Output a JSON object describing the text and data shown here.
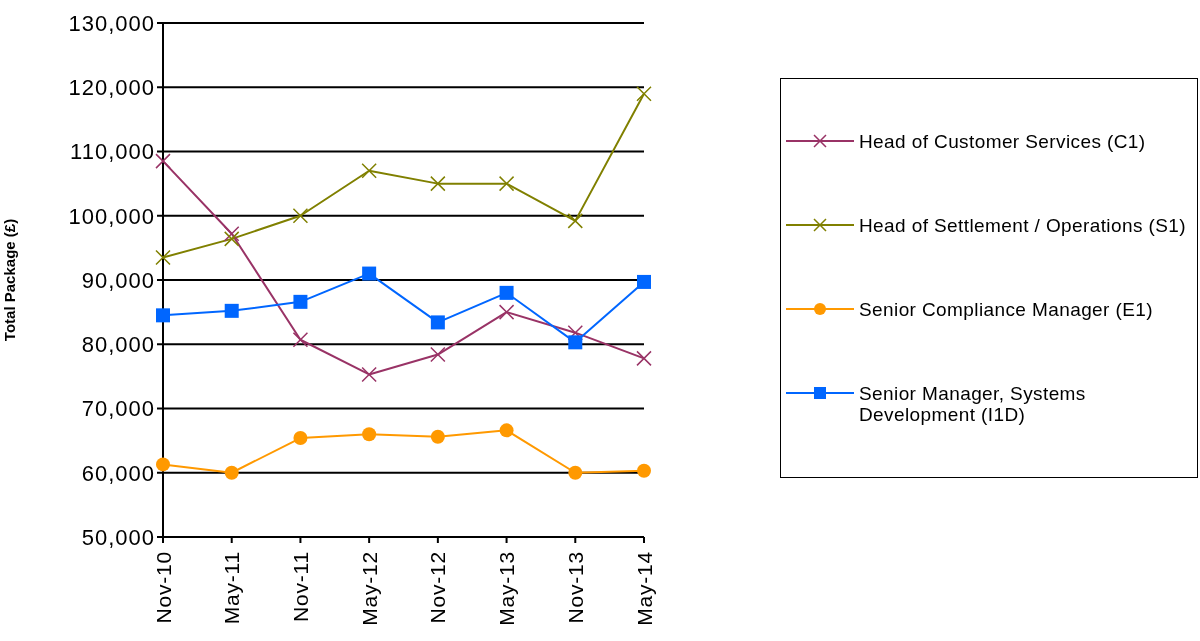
{
  "chart_data": {
    "type": "line",
    "ylabel": "Total Package (£)",
    "categories": [
      "Nov-10",
      "May-11",
      "Nov-11",
      "May-12",
      "Nov-12",
      "May-13",
      "Nov-13",
      "May-14"
    ],
    "series": [
      {
        "name": "Head of Customer Services (C1)",
        "color": "#993366",
        "marker": "cross",
        "values": [
          108500,
          97200,
          80700,
          75300,
          78400,
          85000,
          81800,
          77800
        ]
      },
      {
        "name": "Head of Settlement / Operations (S1)",
        "color": "#808000",
        "marker": "cross",
        "values": [
          93500,
          96400,
          100000,
          107000,
          105000,
          105000,
          99200,
          119000
        ]
      },
      {
        "name": "Senior Compliance Manager (E1)",
        "color": "#ff9900",
        "marker": "circle",
        "values": [
          61300,
          60000,
          65400,
          66000,
          65600,
          66600,
          60000,
          60300
        ]
      },
      {
        "name": "Senior Manager, Systems Development (I1D)",
        "color": "#0066ff",
        "marker": "square",
        "values": [
          84500,
          85200,
          86600,
          91000,
          83400,
          88000,
          80300,
          89700
        ]
      }
    ],
    "ylim": [
      50000,
      130000
    ],
    "yticks": [
      {
        "value": 50000,
        "label": "50,000"
      },
      {
        "value": 60000,
        "label": "60,000"
      },
      {
        "value": 70000,
        "label": "70,000"
      },
      {
        "value": 80000,
        "label": "80,000"
      },
      {
        "value": 90000,
        "label": "90,000"
      },
      {
        "value": 100000,
        "label": "100,000"
      },
      {
        "value": 110000,
        "label": "110,000"
      },
      {
        "value": 120000,
        "label": "120,000"
      },
      {
        "value": 130000,
        "label": "130,000"
      }
    ],
    "grid": "y",
    "legend": "right"
  }
}
